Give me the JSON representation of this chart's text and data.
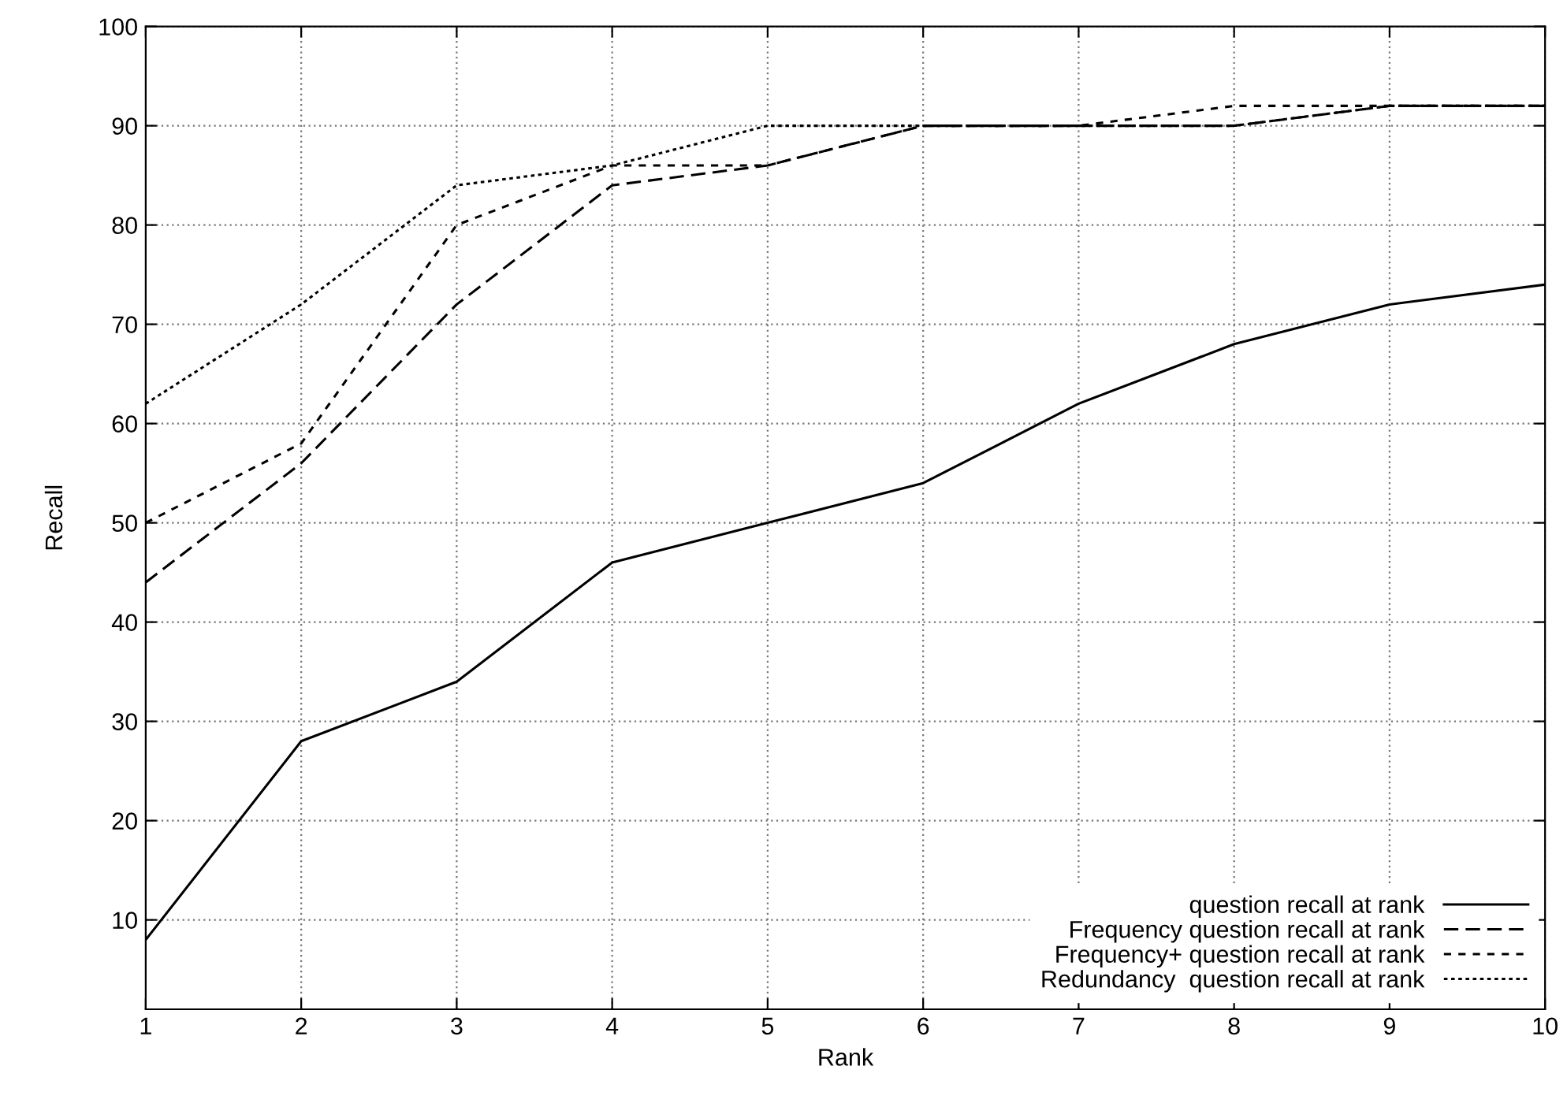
{
  "chart_data": {
    "type": "line",
    "xlabel": "Rank",
    "ylabel": "Recall",
    "x": [
      1,
      2,
      3,
      4,
      5,
      6,
      7,
      8,
      9,
      10
    ],
    "series": [
      {
        "name": "question recall at rank",
        "color": "#000000",
        "line_style": "solid",
        "values": [
          8,
          28,
          34,
          46,
          50,
          54,
          62,
          68,
          72,
          74
        ]
      },
      {
        "name": "Frequency question recall at rank",
        "color": "#000000",
        "line_style": "dashed",
        "values": [
          44,
          56,
          72,
          84,
          86,
          90,
          90,
          90,
          92,
          92
        ]
      },
      {
        "name": "Frequency+ question recall at rank",
        "color": "#000000",
        "line_style": "dashed",
        "values": [
          50,
          58,
          80,
          86,
          86,
          90,
          90,
          92,
          92,
          92
        ]
      },
      {
        "name": "Redundancy  question recall at rank",
        "color": "#000000",
        "line_style": "dotted",
        "values": [
          62,
          72,
          84,
          86,
          90,
          90,
          90,
          90,
          92,
          92
        ]
      }
    ],
    "xlim": [
      1,
      10
    ],
    "xticks": [
      1,
      2,
      3,
      4,
      5,
      6,
      7,
      8,
      9,
      10
    ],
    "ylim": [
      1,
      100
    ],
    "yticks": [
      10,
      20,
      30,
      40,
      50,
      60,
      70,
      80,
      90,
      100
    ],
    "grid": true,
    "legend": "bottom right",
    "marker": "none"
  }
}
